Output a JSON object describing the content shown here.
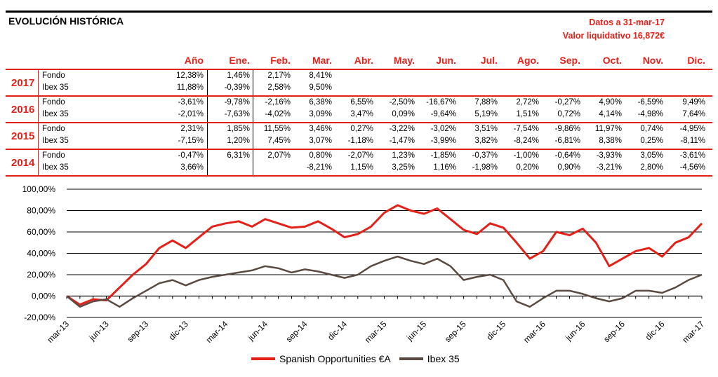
{
  "header": {
    "title": "EVOLUCIÓN HISTÓRICA",
    "date_line": "Datos a 31-mar-17",
    "value_line": "Valor liquidativo 16,872€"
  },
  "table": {
    "columns": [
      "Año",
      "Ene.",
      "Feb.",
      "Mar.",
      "Abr.",
      "May.",
      "Jun.",
      "Jul.",
      "Ago.",
      "Sep.",
      "Oct.",
      "Nov.",
      "Dic."
    ],
    "years": [
      {
        "year": "2017",
        "rows": [
          {
            "label": "Fondo",
            "values": [
              "12,38%",
              "1,46%",
              "2,17%",
              "8,41%",
              "",
              "",
              "",
              "",
              "",
              "",
              "",
              "",
              ""
            ]
          },
          {
            "label": "Ibex 35",
            "values": [
              "11,88%",
              "-0,39%",
              "2,58%",
              "9,50%",
              "",
              "",
              "",
              "",
              "",
              "",
              "",
              "",
              ""
            ]
          }
        ]
      },
      {
        "year": "2016",
        "rows": [
          {
            "label": "Fondo",
            "values": [
              "-3,61%",
              "-9,78%",
              "-2,16%",
              "6,38%",
              "6,55%",
              "-2,50%",
              "-16,67%",
              "7,88%",
              "2,72%",
              "-0,27%",
              "4,90%",
              "-6,59%",
              "9,49%"
            ]
          },
          {
            "label": "Ibex 35",
            "values": [
              "-2,01%",
              "-7,63%",
              "-4,02%",
              "3,09%",
              "3,47%",
              "0,09%",
              "-9,64%",
              "5,19%",
              "1,51%",
              "0,72%",
              "4,14%",
              "-4,98%",
              "7,64%"
            ]
          }
        ]
      },
      {
        "year": "2015",
        "rows": [
          {
            "label": "Fondo",
            "values": [
              "2,31%",
              "1,85%",
              "11,55%",
              "3,46%",
              "0,27%",
              "-3,22%",
              "-3,02%",
              "3,51%",
              "-7,54%",
              "-9,86%",
              "11,97%",
              "0,74%",
              "-4,95%"
            ]
          },
          {
            "label": "Ibex 35",
            "values": [
              "-7,15%",
              "1,20%",
              "7,45%",
              "3,07%",
              "-1,18%",
              "-1,47%",
              "-3,99%",
              "3,82%",
              "-8,24%",
              "-6,81%",
              "8,38%",
              "0,25%",
              "-8,11%"
            ]
          }
        ]
      },
      {
        "year": "2014",
        "rows": [
          {
            "label": "Fondo",
            "values": [
              "-0,47%",
              "6,31%",
              "2,07%",
              "0,80%",
              "-2,07%",
              "1,23%",
              "-1,85%",
              "-0,37%",
              "-1,00%",
              "-0,64%",
              "-3,93%",
              "3,05%",
              "-3,61%"
            ]
          },
          {
            "label": "Ibex 35",
            "values": [
              "3,66%",
              "",
              "",
              "-8,21%",
              "1,15%",
              "3,25%",
              "1,16%",
              "-1,98%",
              "0,20%",
              "0,90%",
              "-3,21%",
              "2,80%",
              "-4,56%"
            ]
          }
        ]
      }
    ]
  },
  "chart_data": {
    "type": "line",
    "title": "",
    "xlabel": "",
    "ylabel": "",
    "ylim": [
      -20,
      100
    ],
    "yticks": [
      "-20,00%",
      "0,00%",
      "20,00%",
      "40,00%",
      "60,00%",
      "80,00%",
      "100,00%"
    ],
    "x": [
      "mar-13",
      "abr-13",
      "may-13",
      "jun-13",
      "jul-13",
      "ago-13",
      "sep-13",
      "oct-13",
      "nov-13",
      "dic-13",
      "ene-14",
      "feb-14",
      "mar-14",
      "abr-14",
      "may-14",
      "jun-14",
      "jul-14",
      "ago-14",
      "sep-14",
      "oct-14",
      "nov-14",
      "dic-14",
      "ene-15",
      "feb-15",
      "mar-15",
      "abr-15",
      "may-15",
      "jun-15",
      "jul-15",
      "ago-15",
      "sep-15",
      "oct-15",
      "nov-15",
      "dic-15",
      "ene-16",
      "feb-16",
      "mar-16",
      "abr-16",
      "may-16",
      "jun-16",
      "jul-16",
      "ago-16",
      "sep-16",
      "oct-16",
      "nov-16",
      "dic-16",
      "ene-17",
      "feb-17",
      "mar-17"
    ],
    "xticks": [
      "mar-13",
      "jun-13",
      "sep-13",
      "dic-13",
      "mar-14",
      "jun-14",
      "sep-14",
      "dic-14",
      "mar-15",
      "jun-15",
      "sep-15",
      "dic-15",
      "mar-16",
      "jun-16",
      "sep-16",
      "dic-16",
      "mar-17"
    ],
    "series": [
      {
        "name": "Spanish Opportunities €A",
        "color": "#e32119",
        "values": [
          0,
          -8,
          -3,
          -4,
          8,
          20,
          30,
          45,
          52,
          45,
          55,
          65,
          68,
          70,
          65,
          72,
          68,
          64,
          65,
          70,
          63,
          55,
          58,
          65,
          78,
          85,
          80,
          77,
          82,
          72,
          62,
          58,
          68,
          64,
          50,
          35,
          42,
          60,
          57,
          63,
          50,
          28,
          35,
          42,
          45,
          37,
          50,
          55,
          68
        ]
      },
      {
        "name": "Ibex 35",
        "color": "#5b4a42",
        "values": [
          0,
          -10,
          -5,
          -3,
          -10,
          -2,
          5,
          12,
          15,
          10,
          15,
          18,
          20,
          22,
          24,
          28,
          26,
          22,
          25,
          23,
          20,
          17,
          20,
          28,
          33,
          37,
          33,
          30,
          35,
          28,
          15,
          18,
          20,
          15,
          -5,
          -10,
          -2,
          5,
          5,
          2,
          -2,
          -5,
          -2,
          5,
          5,
          3,
          8,
          15,
          20
        ]
      }
    ],
    "legend": "bottom",
    "grid": true
  }
}
